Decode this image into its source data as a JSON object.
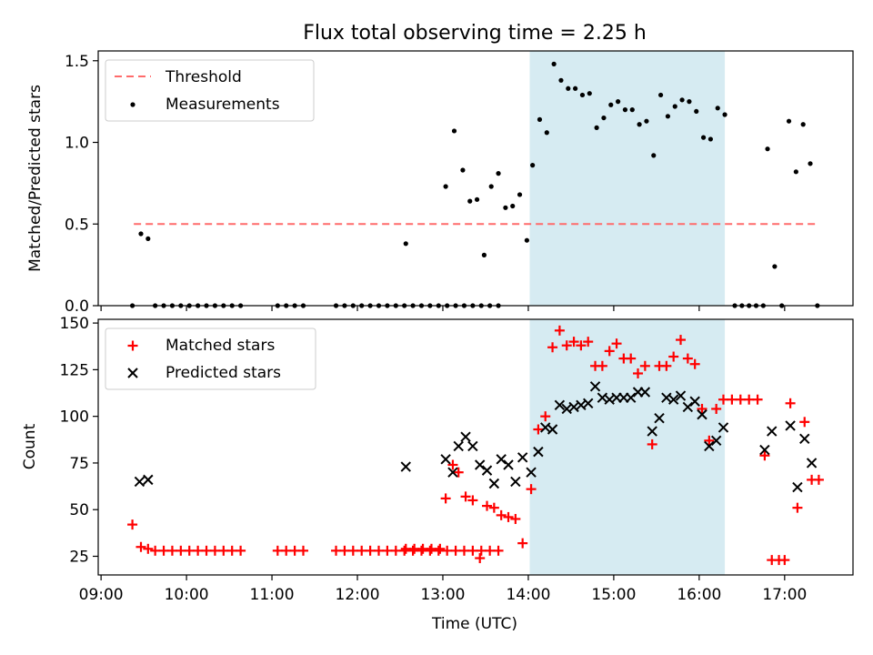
{
  "title": "Flux total observing time = 2.25 h",
  "colors": {
    "threshold": "#ff6b6b",
    "measurement": "#000000",
    "matched": "#ff0000",
    "predicted": "#000000",
    "span": "#add8e6"
  },
  "chart_data": [
    {
      "type": "scatter",
      "ylabel": "Matched/Predicted stars",
      "ylim": [
        0,
        1.56
      ],
      "yticks": [
        "0.0",
        "0.5",
        "1.0",
        "1.5"
      ],
      "highlight_span": [
        "14:01",
        "16:18"
      ],
      "legend": {
        "placement": "top-left",
        "entries": [
          {
            "label": "Threshold",
            "marker": "dashed-line"
          },
          {
            "label": "Measurements",
            "marker": "dot"
          }
        ]
      },
      "threshold": {
        "name": "Threshold",
        "value": 0.5,
        "x_range": [
          "09:23",
          "17:23"
        ]
      },
      "series": [
        {
          "name": "Measurements",
          "points": [
            [
              "09:22",
              0.0
            ],
            [
              "09:28",
              0.44
            ],
            [
              "09:33",
              0.41
            ],
            [
              "09:38",
              0.0
            ],
            [
              "09:44",
              0.0
            ],
            [
              "09:50",
              0.0
            ],
            [
              "09:56",
              0.0
            ],
            [
              "10:02",
              0.0
            ],
            [
              "10:08",
              0.0
            ],
            [
              "10:14",
              0.0
            ],
            [
              "10:20",
              0.0
            ],
            [
              "10:26",
              0.0
            ],
            [
              "10:32",
              0.0
            ],
            [
              "10:38",
              0.0
            ],
            [
              "11:04",
              0.0
            ],
            [
              "11:10",
              0.0
            ],
            [
              "11:16",
              0.0
            ],
            [
              "11:22",
              0.0
            ],
            [
              "11:45",
              0.0
            ],
            [
              "11:51",
              0.0
            ],
            [
              "11:57",
              0.0
            ],
            [
              "12:03",
              0.0
            ],
            [
              "12:09",
              0.0
            ],
            [
              "12:15",
              0.0
            ],
            [
              "12:21",
              0.0
            ],
            [
              "12:27",
              0.0
            ],
            [
              "12:33",
              0.0
            ],
            [
              "12:39",
              0.0
            ],
            [
              "12:45",
              0.0
            ],
            [
              "12:51",
              0.0
            ],
            [
              "12:57",
              0.0
            ],
            [
              "13:03",
              0.0
            ],
            [
              "13:09",
              0.0
            ],
            [
              "13:15",
              0.0
            ],
            [
              "13:21",
              0.0
            ],
            [
              "13:27",
              0.0
            ],
            [
              "13:33",
              0.0
            ],
            [
              "13:39",
              0.0
            ],
            [
              "12:34",
              0.38
            ],
            [
              "13:02",
              0.73
            ],
            [
              "13:08",
              1.07
            ],
            [
              "13:14",
              0.83
            ],
            [
              "13:19",
              0.64
            ],
            [
              "13:24",
              0.65
            ],
            [
              "13:29",
              0.31
            ],
            [
              "13:34",
              0.73
            ],
            [
              "13:39",
              0.81
            ],
            [
              "13:44",
              0.6
            ],
            [
              "13:49",
              0.61
            ],
            [
              "13:54",
              0.68
            ],
            [
              "13:59",
              0.4
            ],
            [
              "14:03",
              0.86
            ],
            [
              "14:08",
              1.14
            ],
            [
              "14:13",
              1.06
            ],
            [
              "14:18",
              1.48
            ],
            [
              "14:23",
              1.38
            ],
            [
              "14:28",
              1.33
            ],
            [
              "14:33",
              1.33
            ],
            [
              "14:38",
              1.29
            ],
            [
              "14:43",
              1.3
            ],
            [
              "14:48",
              1.09
            ],
            [
              "14:53",
              1.15
            ],
            [
              "14:58",
              1.23
            ],
            [
              "15:03",
              1.25
            ],
            [
              "15:08",
              1.2
            ],
            [
              "15:13",
              1.2
            ],
            [
              "15:18",
              1.11
            ],
            [
              "15:23",
              1.13
            ],
            [
              "15:28",
              0.92
            ],
            [
              "15:33",
              1.29
            ],
            [
              "15:38",
              1.16
            ],
            [
              "15:43",
              1.22
            ],
            [
              "15:48",
              1.26
            ],
            [
              "15:53",
              1.25
            ],
            [
              "15:58",
              1.19
            ],
            [
              "16:03",
              1.03
            ],
            [
              "16:08",
              1.02
            ],
            [
              "16:13",
              1.21
            ],
            [
              "16:18",
              1.17
            ],
            [
              "16:25",
              0.0
            ],
            [
              "16:30",
              0.0
            ],
            [
              "16:35",
              0.0
            ],
            [
              "16:40",
              0.0
            ],
            [
              "16:45",
              0.0
            ],
            [
              "16:48",
              0.96
            ],
            [
              "16:53",
              0.24
            ],
            [
              "16:58",
              0.0
            ],
            [
              "17:03",
              1.13
            ],
            [
              "17:08",
              0.82
            ],
            [
              "17:13",
              1.11
            ],
            [
              "17:18",
              0.87
            ],
            [
              "17:23",
              0.0
            ]
          ]
        }
      ]
    },
    {
      "type": "scatter",
      "xlabel": "Time (UTC)",
      "ylabel": "Count",
      "ylim": [
        15,
        152
      ],
      "yticks": [
        "25",
        "50",
        "75",
        "100",
        "125",
        "150"
      ],
      "xlim": [
        "08:58",
        "17:48"
      ],
      "xticks": [
        "09:00",
        "10:00",
        "11:00",
        "12:00",
        "13:00",
        "14:00",
        "15:00",
        "16:00",
        "17:00"
      ],
      "highlight_span": [
        "14:01",
        "16:18"
      ],
      "legend": {
        "placement": "top-left",
        "entries": [
          {
            "label": "Matched stars",
            "marker": "plus"
          },
          {
            "label": "Predicted stars",
            "marker": "x"
          }
        ]
      },
      "series": [
        {
          "name": "Matched stars",
          "points": [
            [
              "09:22",
              42
            ],
            [
              "09:28",
              30
            ],
            [
              "09:33",
              29
            ],
            [
              "09:38",
              28
            ],
            [
              "09:44",
              28
            ],
            [
              "09:50",
              28
            ],
            [
              "09:56",
              28
            ],
            [
              "10:02",
              28
            ],
            [
              "10:08",
              28
            ],
            [
              "10:14",
              28
            ],
            [
              "10:20",
              28
            ],
            [
              "10:26",
              28
            ],
            [
              "10:32",
              28
            ],
            [
              "10:38",
              28
            ],
            [
              "11:04",
              28
            ],
            [
              "11:10",
              28
            ],
            [
              "11:16",
              28
            ],
            [
              "11:22",
              28
            ],
            [
              "11:45",
              28
            ],
            [
              "11:51",
              28
            ],
            [
              "11:57",
              28
            ],
            [
              "12:03",
              28
            ],
            [
              "12:09",
              28
            ],
            [
              "12:15",
              28
            ],
            [
              "12:21",
              28
            ],
            [
              "12:27",
              28
            ],
            [
              "12:33",
              28
            ],
            [
              "12:39",
              28
            ],
            [
              "12:45",
              28
            ],
            [
              "12:51",
              28
            ],
            [
              "12:57",
              28
            ],
            [
              "13:03",
              28
            ],
            [
              "13:09",
              28
            ],
            [
              "13:15",
              28
            ],
            [
              "13:21",
              28
            ],
            [
              "13:27",
              28
            ],
            [
              "13:33",
              28
            ],
            [
              "13:39",
              28
            ],
            [
              "12:34",
              29
            ],
            [
              "12:40",
              29
            ],
            [
              "12:46",
              29
            ],
            [
              "12:52",
              29
            ],
            [
              "12:58",
              29
            ],
            [
              "13:02",
              56
            ],
            [
              "13:07",
              74
            ],
            [
              "13:11",
              70
            ],
            [
              "13:16",
              57
            ],
            [
              "13:21",
              55
            ],
            [
              "13:26",
              24
            ],
            [
              "13:31",
              52
            ],
            [
              "13:36",
              51
            ],
            [
              "13:41",
              47
            ],
            [
              "13:46",
              46
            ],
            [
              "13:51",
              45
            ],
            [
              "13:56",
              32
            ],
            [
              "14:02",
              61
            ],
            [
              "14:07",
              93
            ],
            [
              "14:12",
              100
            ],
            [
              "14:17",
              137
            ],
            [
              "14:22",
              146
            ],
            [
              "14:27",
              138
            ],
            [
              "14:32",
              140
            ],
            [
              "14:37",
              138
            ],
            [
              "14:42",
              140
            ],
            [
              "14:47",
              127
            ],
            [
              "14:52",
              127
            ],
            [
              "14:57",
              135
            ],
            [
              "15:02",
              139
            ],
            [
              "15:07",
              131
            ],
            [
              "15:12",
              131
            ],
            [
              "15:17",
              123
            ],
            [
              "15:22",
              127
            ],
            [
              "15:27",
              85
            ],
            [
              "15:32",
              127
            ],
            [
              "15:37",
              127
            ],
            [
              "15:42",
              132
            ],
            [
              "15:47",
              141
            ],
            [
              "15:52",
              131
            ],
            [
              "15:57",
              128
            ],
            [
              "16:02",
              104
            ],
            [
              "16:07",
              87
            ],
            [
              "16:12",
              104
            ],
            [
              "16:17",
              109
            ],
            [
              "16:23",
              109
            ],
            [
              "16:29",
              109
            ],
            [
              "16:35",
              109
            ],
            [
              "16:41",
              109
            ],
            [
              "16:46",
              79
            ],
            [
              "16:51",
              23
            ],
            [
              "16:56",
              23
            ],
            [
              "17:00",
              23
            ],
            [
              "17:04",
              107
            ],
            [
              "17:09",
              51
            ],
            [
              "17:14",
              97
            ],
            [
              "17:19",
              66
            ],
            [
              "17:24",
              66
            ]
          ]
        },
        {
          "name": "Predicted stars",
          "points": [
            [
              "09:27",
              65
            ],
            [
              "09:33",
              66
            ],
            [
              "12:34",
              73
            ],
            [
              "13:02",
              77
            ],
            [
              "13:07",
              70
            ],
            [
              "13:11",
              84
            ],
            [
              "13:16",
              89
            ],
            [
              "13:21",
              84
            ],
            [
              "13:26",
              74
            ],
            [
              "13:31",
              71
            ],
            [
              "13:36",
              64
            ],
            [
              "13:41",
              77
            ],
            [
              "13:46",
              74
            ],
            [
              "13:51",
              65
            ],
            [
              "13:56",
              78
            ],
            [
              "14:02",
              70
            ],
            [
              "14:07",
              81
            ],
            [
              "14:12",
              94
            ],
            [
              "14:17",
              93
            ],
            [
              "14:22",
              106
            ],
            [
              "14:27",
              104
            ],
            [
              "14:32",
              105
            ],
            [
              "14:37",
              106
            ],
            [
              "14:42",
              107
            ],
            [
              "14:47",
              116
            ],
            [
              "14:52",
              110
            ],
            [
              "14:57",
              109
            ],
            [
              "15:02",
              110
            ],
            [
              "15:07",
              110
            ],
            [
              "15:12",
              110
            ],
            [
              "15:17",
              113
            ],
            [
              "15:22",
              113
            ],
            [
              "15:27",
              92
            ],
            [
              "15:32",
              99
            ],
            [
              "15:37",
              110
            ],
            [
              "15:42",
              109
            ],
            [
              "15:47",
              111
            ],
            [
              "15:52",
              105
            ],
            [
              "15:57",
              108
            ],
            [
              "16:02",
              101
            ],
            [
              "16:07",
              84
            ],
            [
              "16:12",
              87
            ],
            [
              "16:17",
              94
            ],
            [
              "16:46",
              82
            ],
            [
              "16:51",
              92
            ],
            [
              "17:04",
              95
            ],
            [
              "17:09",
              62
            ],
            [
              "17:14",
              88
            ],
            [
              "17:19",
              75
            ]
          ]
        }
      ]
    }
  ]
}
